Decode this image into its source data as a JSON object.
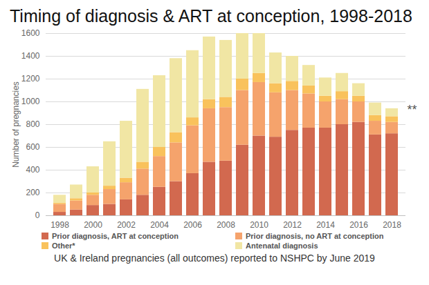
{
  "chart_data": {
    "type": "bar",
    "stacked": true,
    "title": "Timing of diagnosis & ART at conception, 1998-2018",
    "caption": "UK & Ireland pregnancies (all outcomes) reported to NSHPC by June 2019",
    "y_label": "Number of pregnancies",
    "x": [
      1998,
      1999,
      2000,
      2001,
      2002,
      2003,
      2004,
      2005,
      2006,
      2007,
      2008,
      2009,
      2010,
      2011,
      2012,
      2013,
      2014,
      2015,
      2016,
      2017,
      2018
    ],
    "xticks": [
      1998,
      2000,
      2002,
      2004,
      2006,
      2008,
      2010,
      2012,
      2014,
      2016,
      2018
    ],
    "ylim": [
      0,
      1600
    ],
    "yticks": [
      0,
      200,
      400,
      600,
      800,
      1000,
      1200,
      1400,
      1600
    ],
    "grid": true,
    "legend": "bottom",
    "series": [
      {
        "name": "Prior diagnosis, ART at conception",
        "color": "#d2694f",
        "values": [
          30,
          50,
          90,
          100,
          140,
          180,
          250,
          300,
          370,
          470,
          480,
          620,
          700,
          690,
          750,
          770,
          770,
          800,
          820,
          710,
          720
        ]
      },
      {
        "name": "Prior diagnosis, no ART at conception",
        "color": "#f5a36c",
        "values": [
          70,
          80,
          90,
          130,
          150,
          230,
          270,
          340,
          420,
          470,
          470,
          480,
          470,
          390,
          350,
          300,
          230,
          220,
          180,
          120,
          100
        ]
      },
      {
        "name": "Other*",
        "color": "#f9c25c",
        "values": [
          10,
          20,
          20,
          30,
          40,
          60,
          80,
          90,
          70,
          80,
          90,
          100,
          80,
          80,
          80,
          70,
          50,
          70,
          50,
          50,
          50
        ]
      },
      {
        "name": "Antenatal diagnosis",
        "color": "#f1e6a4",
        "values": [
          70,
          120,
          230,
          390,
          500,
          640,
          630,
          650,
          590,
          550,
          500,
          400,
          350,
          270,
          220,
          180,
          160,
          160,
          110,
          110,
          70
        ]
      }
    ],
    "annotations": [
      {
        "text": "**",
        "x": 2018
      }
    ]
  }
}
